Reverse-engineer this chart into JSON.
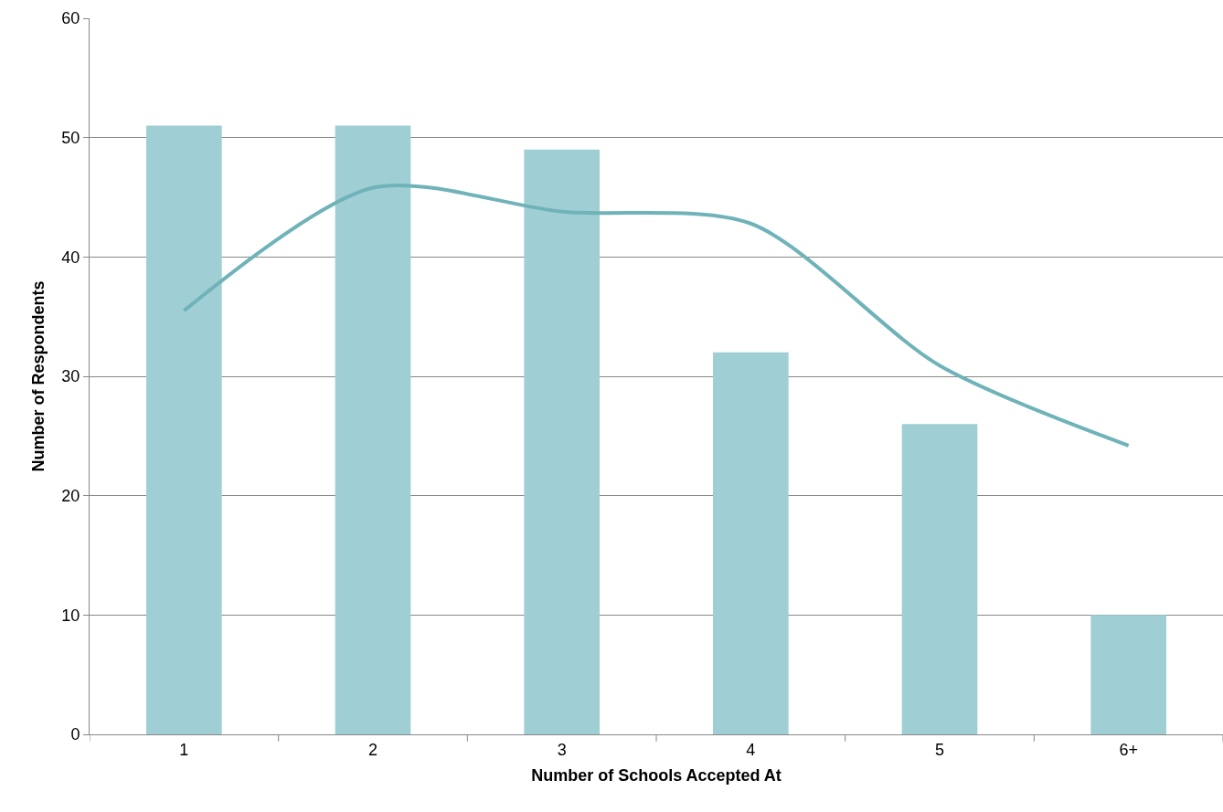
{
  "chart_data": {
    "type": "bar",
    "xlabel": "Number of Schools Accepted At",
    "ylabel": "Number of Respondents",
    "categories": [
      "1",
      "2",
      "3",
      "4",
      "5",
      "6+"
    ],
    "series": [
      {
        "color": "#9fcfd4",
        "values": [
          51,
          51,
          49,
          32,
          26,
          10
        ]
      },
      {
        "type": "line",
        "color": "#6fb3b9",
        "values": [
          35.5,
          45.8,
          43.8,
          42.8,
          30.9,
          24.2
        ]
      }
    ],
    "ylim": [
      0,
      60
    ],
    "yticks": [
      0,
      10,
      20,
      30,
      40,
      50,
      60
    ],
    "grid": "y",
    "legend": false,
    "marker": "none",
    "line_style": "solid"
  }
}
